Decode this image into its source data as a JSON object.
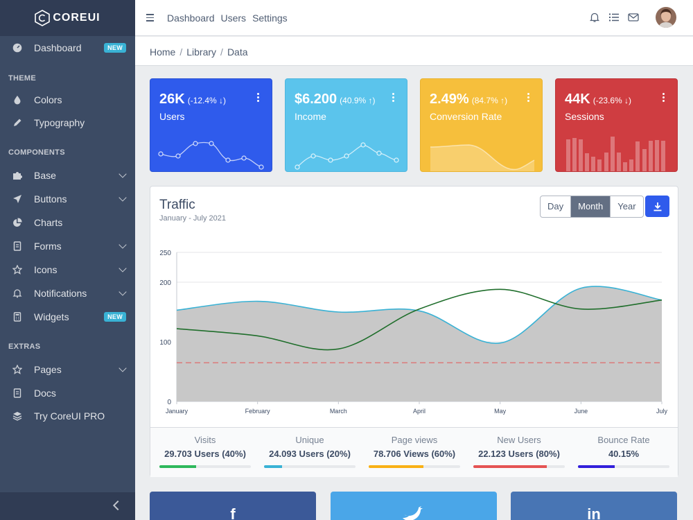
{
  "brand": {
    "name": "COREUI"
  },
  "sidebar": {
    "dashboard": {
      "label": "Dashboard",
      "badge": "NEW",
      "icon": "speedometer-icon"
    },
    "sections": [
      {
        "title": "THEME"
      },
      {
        "title": "COMPONENTS"
      },
      {
        "title": "EXTRAS"
      }
    ],
    "items": [
      {
        "label": "Colors",
        "icon": "drop-icon"
      },
      {
        "label": "Typography",
        "icon": "pencil-icon"
      },
      {
        "label": "Base",
        "icon": "puzzle-icon"
      },
      {
        "label": "Buttons",
        "icon": "cursor-icon"
      },
      {
        "label": "Charts",
        "icon": "chart-pie-icon"
      },
      {
        "label": "Forms",
        "icon": "notes-icon"
      },
      {
        "label": "Icons",
        "icon": "star-icon"
      },
      {
        "label": "Notifications",
        "icon": "bell-icon"
      },
      {
        "label": "Widgets",
        "icon": "calculator-icon",
        "badge": "NEW"
      },
      {
        "label": "Pages",
        "icon": "star-icon"
      },
      {
        "label": "Docs",
        "icon": "description-icon"
      },
      {
        "label": "Try CoreUI PRO",
        "icon": "layers-icon"
      }
    ]
  },
  "header": {
    "nav": [
      "Dashboard",
      "Users",
      "Settings"
    ]
  },
  "breadcrumb": [
    "Home",
    "Library",
    "Data"
  ],
  "widgets": [
    {
      "value": "26K",
      "change": "(-12.4% ↓)",
      "label": "Users",
      "color": "#2f5bec"
    },
    {
      "value": "$6.200",
      "change": "(40.9% ↑)",
      "label": "Income",
      "color": "#5bc4ec"
    },
    {
      "value": "2.49%",
      "change": "(84.7% ↑)",
      "label": "Conversion Rate",
      "color": "#f6bf3c"
    },
    {
      "value": "44K",
      "change": "(-23.6% ↓)",
      "label": "Sessions",
      "color": "#cf3d41"
    }
  ],
  "traffic": {
    "title": "Traffic",
    "subtitle": "January - July 2021",
    "ranges": [
      "Day",
      "Month",
      "Year"
    ],
    "active_range": "Month"
  },
  "chart_data": {
    "type": "area",
    "title": "Traffic",
    "categories": [
      "January",
      "February",
      "March",
      "April",
      "May",
      "June",
      "July"
    ],
    "ylim": [
      0,
      250
    ],
    "yticks": [
      0,
      100,
      200,
      250
    ],
    "series": [
      {
        "values": [
          153,
          168,
          150,
          152,
          98,
          190,
          170
        ],
        "color": "#39b2d5",
        "fill": "#c8c8c8"
      },
      {
        "values": [
          122,
          110,
          88,
          155,
          188,
          155,
          170
        ],
        "color": "#1f6e2b"
      },
      {
        "values": [
          65,
          65,
          65,
          65,
          65,
          65,
          65
        ],
        "color": "#e55353",
        "dashed": true
      }
    ],
    "grid": true
  },
  "stats": [
    {
      "label": "Visits",
      "value": "29.703 Users (40%)",
      "percent": 40,
      "color": "#2eb85c"
    },
    {
      "label": "Unique",
      "value": "24.093 Users (20%)",
      "percent": 20,
      "color": "#39b2d5"
    },
    {
      "label": "Page views",
      "value": "78.706 Views (60%)",
      "percent": 60,
      "color": "#f9b115"
    },
    {
      "label": "New Users",
      "value": "22.123 Users (80%)",
      "percent": 80,
      "color": "#e55353"
    },
    {
      "label": "Bounce Rate",
      "value": "40.15%",
      "percent": 40,
      "color": "#321fdb"
    }
  ],
  "social": [
    {
      "icon": "facebook-icon",
      "glyph": "f",
      "color": "#3b5998"
    },
    {
      "icon": "twitter-icon",
      "glyph": "🐦",
      "color": "#00aced"
    },
    {
      "icon": "linkedin-icon",
      "glyph": "in",
      "color": "#4875b4"
    }
  ]
}
